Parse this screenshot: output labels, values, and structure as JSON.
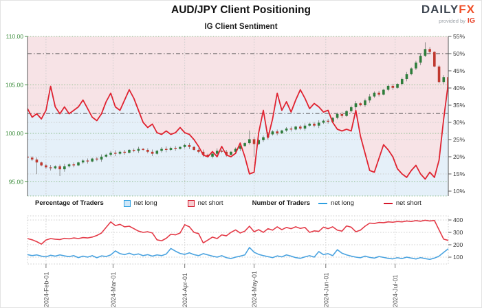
{
  "header": {
    "title": "AUD/JPY Client Positioning",
    "logo": {
      "brand": "DAILY",
      "brand_accent": "FX",
      "provided_by": "provided by",
      "provider": "IG"
    }
  },
  "legend": {
    "pct_title": "Percentage of Traders",
    "num_title": "Number of Traders",
    "net_long": "net long",
    "net_short": "net short"
  },
  "colors": {
    "accent_red": "#e02330",
    "accent_blue": "#2d9fe0",
    "candle_up": "#2e7d3b",
    "candle_down": "#c0392f",
    "wick": "#777777",
    "bg_pink": "#f7e3e6",
    "bg_blue": "#e5f0f9",
    "grid_green": "#8abb8a",
    "grid_gray": "#cccccc",
    "axis_green": "#3f8f3f",
    "axis_dark": "#555555",
    "label_dark": "#333333",
    "date_label": "#555555",
    "count_red": "#e43a47",
    "count_blue": "#4aa3e0",
    "ref_line": "#4a4a4a"
  },
  "chart_data": [
    {
      "type": "candlestick+line",
      "title": "IG Client Sentiment",
      "legend_position": "below",
      "grid": true,
      "days_span": 182,
      "sample_step_days": 2,
      "x_axis": {
        "tick_labels": [
          "2024-Feb-01",
          "2024-Mar-01",
          "2024-Apr-01",
          "2024-May-01",
          "2024-Jun-01",
          "2024-Jul-01"
        ],
        "tick_days": [
          8,
          37,
          68,
          98,
          129,
          159
        ]
      },
      "left_axis": {
        "title": "price",
        "tick_labels": [
          "110.00",
          "105.00",
          "100.00",
          "95.00"
        ],
        "tick_values": [
          110,
          105,
          100,
          95
        ],
        "range": [
          93.5,
          110
        ]
      },
      "right_axis": {
        "title": "percent of traders net short",
        "tick_labels": [
          "55%",
          "50%",
          "45%",
          "40%",
          "35%",
          "30%",
          "25%",
          "20%",
          "15%",
          "10%"
        ],
        "tick_values": [
          55,
          50,
          45,
          40,
          35,
          30,
          25,
          20,
          15,
          10
        ],
        "range": [
          8.6,
          55
        ]
      },
      "gridlines_price_green": [
        105,
        100,
        95
      ],
      "gridlines_pct_gray": [
        40,
        35,
        30,
        25,
        20,
        15
      ],
      "reference_lines_pct": [
        50,
        32.6
      ],
      "price_close": [
        97.5,
        97.3,
        97.0,
        96.7,
        96.5,
        96.4,
        96.6,
        96.3,
        96.6,
        96.8,
        96.7,
        97.0,
        97.2,
        97.1,
        97.4,
        97.3,
        97.6,
        97.8,
        98.0,
        97.9,
        98.1,
        98.0,
        98.3,
        98.2,
        98.4,
        98.3,
        98.1,
        97.9,
        98.2,
        98.4,
        98.3,
        98.5,
        98.4,
        98.6,
        98.8,
        98.6,
        98.3,
        98.1,
        97.8,
        97.6,
        97.9,
        98.2,
        98.1,
        97.8,
        98.1,
        98.4,
        98.7,
        99.0,
        99.4,
        98.9,
        99.3,
        99.6,
        99.9,
        100.2,
        100.0,
        100.3,
        100.5,
        100.4,
        100.7,
        100.5,
        100.8,
        101.0,
        100.8,
        101.1,
        101.3,
        101.2,
        101.6,
        102.0,
        101.8,
        102.3,
        102.7,
        103.1,
        102.9,
        103.4,
        103.8,
        104.2,
        104.0,
        104.5,
        104.9,
        104.7,
        105.1,
        105.6,
        106.1,
        106.7,
        107.3,
        108.0,
        108.7,
        108.4,
        106.9,
        105.3,
        105.8,
        104.3
      ],
      "wick_overrides": {
        "2": {
          "low": 95.8
        },
        "7": {
          "low": 95.6
        },
        "48": {
          "high": 100.3
        },
        "49": {
          "low": 97.6
        },
        "86": {
          "high": 109.4
        }
      },
      "net_short_pct": [
        34,
        31.5,
        32.5,
        31,
        33.5,
        40.5,
        34.5,
        32.5,
        34.5,
        32.5,
        33.5,
        34.5,
        36.5,
        34,
        31.5,
        30.5,
        32.5,
        36,
        38.5,
        34.5,
        33.5,
        36.5,
        39.5,
        37,
        33.5,
        30,
        28.5,
        29.5,
        27,
        26.5,
        27.5,
        26.5,
        27,
        28.5,
        27,
        26.5,
        25,
        23,
        20.5,
        20,
        21.5,
        20,
        23,
        20.5,
        20,
        21,
        24,
        20,
        15,
        15.5,
        27,
        33.5,
        25.5,
        31,
        38.5,
        33.5,
        36,
        33,
        36.5,
        39.5,
        37,
        34,
        35.5,
        34.5,
        33,
        33.5,
        30,
        28,
        27.5,
        28,
        27.5,
        33.5,
        26,
        21,
        16,
        15.5,
        19.5,
        23.5,
        22,
        20,
        16.5,
        15,
        14,
        16,
        17.5,
        15,
        13.5,
        15.5,
        14,
        19,
        31,
        41.5
      ]
    },
    {
      "type": "line",
      "title": "Number of Traders",
      "grid": true,
      "right_axis": {
        "tick_labels": [
          "400",
          "300",
          "200",
          "100"
        ],
        "tick_values": [
          400,
          300,
          200,
          100
        ],
        "range": [
          45,
          430
        ]
      },
      "series": [
        {
          "name": "net long",
          "values": [
            120,
            112,
            118,
            108,
            102,
            115,
            108,
            118,
            110,
            104,
            112,
            96,
            108,
            100,
            112,
            95,
            110,
            105,
            118,
            150,
            128,
            120,
            132,
            118,
            126,
            112,
            120,
            108,
            118,
            112,
            125,
            170,
            148,
            130,
            122,
            135,
            120,
            112,
            128,
            118,
            108,
            100,
            112,
            96,
            88,
            100,
            108,
            118,
            178,
            140,
            122,
            112,
            104,
            96,
            110,
            102,
            118,
            108,
            96,
            90,
            102,
            112,
            100,
            145,
            120,
            128,
            112,
            160,
            132,
            118,
            108,
            100,
            95,
            108,
            98,
            92,
            105,
            98,
            90,
            86,
            95,
            88,
            100,
            92,
            85,
            96,
            88,
            82,
            92,
            108,
            138,
            168
          ]
        },
        {
          "name": "net short",
          "values": [
            250,
            240,
            225,
            205,
            238,
            250,
            245,
            242,
            252,
            248,
            255,
            250,
            258,
            255,
            262,
            275,
            295,
            340,
            385,
            355,
            365,
            345,
            350,
            330,
            310,
            300,
            305,
            295,
            240,
            232,
            252,
            285,
            280,
            295,
            362,
            345,
            300,
            290,
            215,
            238,
            262,
            250,
            280,
            272,
            300,
            320,
            295,
            310,
            350,
            305,
            322,
            300,
            330,
            318,
            345,
            322,
            340,
            330,
            345,
            332,
            340,
            300,
            312,
            308,
            342,
            330,
            345,
            318,
            310,
            352,
            342,
            305,
            318,
            350,
            375,
            372,
            380,
            378,
            385,
            382,
            388,
            385,
            392,
            388,
            395,
            390,
            398,
            392,
            396,
            320,
            245,
            235
          ]
        }
      ]
    }
  ]
}
